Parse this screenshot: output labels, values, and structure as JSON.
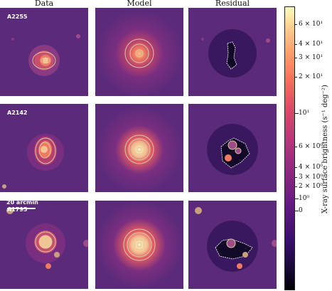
{
  "columns": {
    "data": "Data",
    "model": "Model",
    "residual": "Residual"
  },
  "rows": [
    {
      "cluster": "A2255"
    },
    {
      "cluster": "A2142"
    },
    {
      "cluster": "A1795"
    }
  ],
  "scale_bar": "20 arcmin",
  "colorbar": {
    "title": "X-ray surface brightness (s⁻¹ deg⁻²)",
    "ticks": [
      "6 × 10¹",
      "4 × 10¹",
      "3 × 10¹",
      "2 × 10¹",
      "10¹",
      "6 × 10⁰",
      "4 × 10⁰",
      "3 × 10⁰",
      "2 × 10⁰",
      "10⁰",
      "0"
    ],
    "colormap": "magma",
    "contour_color": "#c8c8a0"
  }
}
